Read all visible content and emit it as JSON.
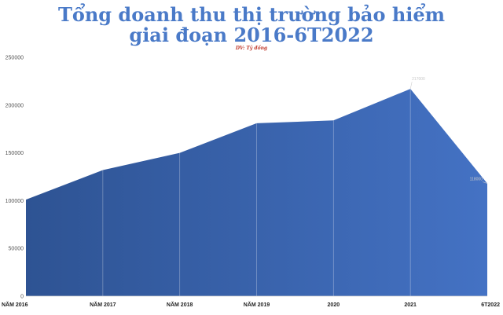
{
  "title_line1": "Tổng doanh thu thị trường bảo hiểm",
  "title_line2": "giai đoạn 2016-6T2022",
  "unit": "DV: Tỷ đồng",
  "colors": {
    "fill_start": "#2e5393",
    "fill_end": "#4472c4",
    "title": "#4a7ac8"
  },
  "chart_data": {
    "type": "area",
    "categories": [
      "NĂM 2016",
      "NĂM 2017",
      "NĂM 2018",
      "NĂM 2019",
      "2020",
      "2021",
      "6T2022"
    ],
    "series": [
      {
        "values": [
          101000,
          132000,
          150000,
          181000,
          184000,
          217000,
          118000
        ]
      }
    ],
    "data_labels": [
      {
        "category": "2021",
        "text": "217000"
      },
      {
        "category": "6T2022",
        "text": "118000"
      }
    ],
    "yticks": [
      0,
      50000,
      100000,
      150000,
      200000,
      250000
    ],
    "ylim": [
      0,
      250000
    ],
    "grid": false,
    "legend": "none"
  }
}
